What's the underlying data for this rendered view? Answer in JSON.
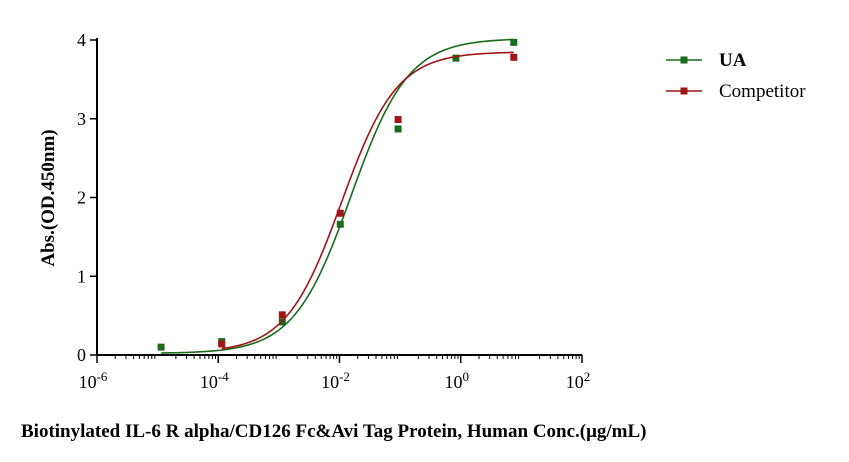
{
  "chart_data": {
    "type": "scatter",
    "title": "",
    "xlabel": "Biotinylated IL-6 R alpha/CD126 Fc&Avi Tag Protein, Human  Conc.(μg/mL)",
    "ylabel": "Abs.(OD.450nm)",
    "x_scale": "log10",
    "xlim": [
      1e-06,
      100
    ],
    "ylim": [
      0,
      4
    ],
    "x_ticks": [
      {
        "value": 1e-06,
        "base": "10",
        "exp": "-6"
      },
      {
        "value": 0.0001,
        "base": "10",
        "exp": "-4"
      },
      {
        "value": 0.01,
        "base": "10",
        "exp": "-2"
      },
      {
        "value": 1,
        "base": "10",
        "exp": "0"
      },
      {
        "value": 100,
        "base": "10",
        "exp": "2"
      }
    ],
    "y_ticks": [
      "0",
      "1",
      "2",
      "3",
      "4"
    ],
    "legend_position": "top-right",
    "curve_fit": "4PL",
    "series": [
      {
        "name": "UA",
        "color": "#1a6b1a",
        "name_weight": "bold",
        "points": [
          {
            "x": 1.14e-05,
            "y": 0.1
          },
          {
            "x": 0.000114,
            "y": 0.17
          },
          {
            "x": 0.00114,
            "y": 0.42
          },
          {
            "x": 0.0103,
            "y": 1.66
          },
          {
            "x": 0.0926,
            "y": 2.87
          },
          {
            "x": 0.833,
            "y": 3.77
          },
          {
            "x": 7.5,
            "y": 3.97
          }
        ],
        "fit": {
          "bottom": 0.02,
          "top": 4.02,
          "ec50": 0.0155,
          "hill": 0.92
        }
      },
      {
        "name": "Competitor",
        "color": "#a01515",
        "name_weight": "normal",
        "points": [
          {
            "x": 0.000114,
            "y": 0.14
          },
          {
            "x": 0.00114,
            "y": 0.51
          },
          {
            "x": 0.0103,
            "y": 1.8
          },
          {
            "x": 0.0926,
            "y": 2.99
          },
          {
            "x": 7.5,
            "y": 3.78
          }
        ],
        "fit": {
          "bottom": 0.03,
          "top": 3.85,
          "ec50": 0.0108,
          "hill": 0.95
        }
      }
    ]
  }
}
